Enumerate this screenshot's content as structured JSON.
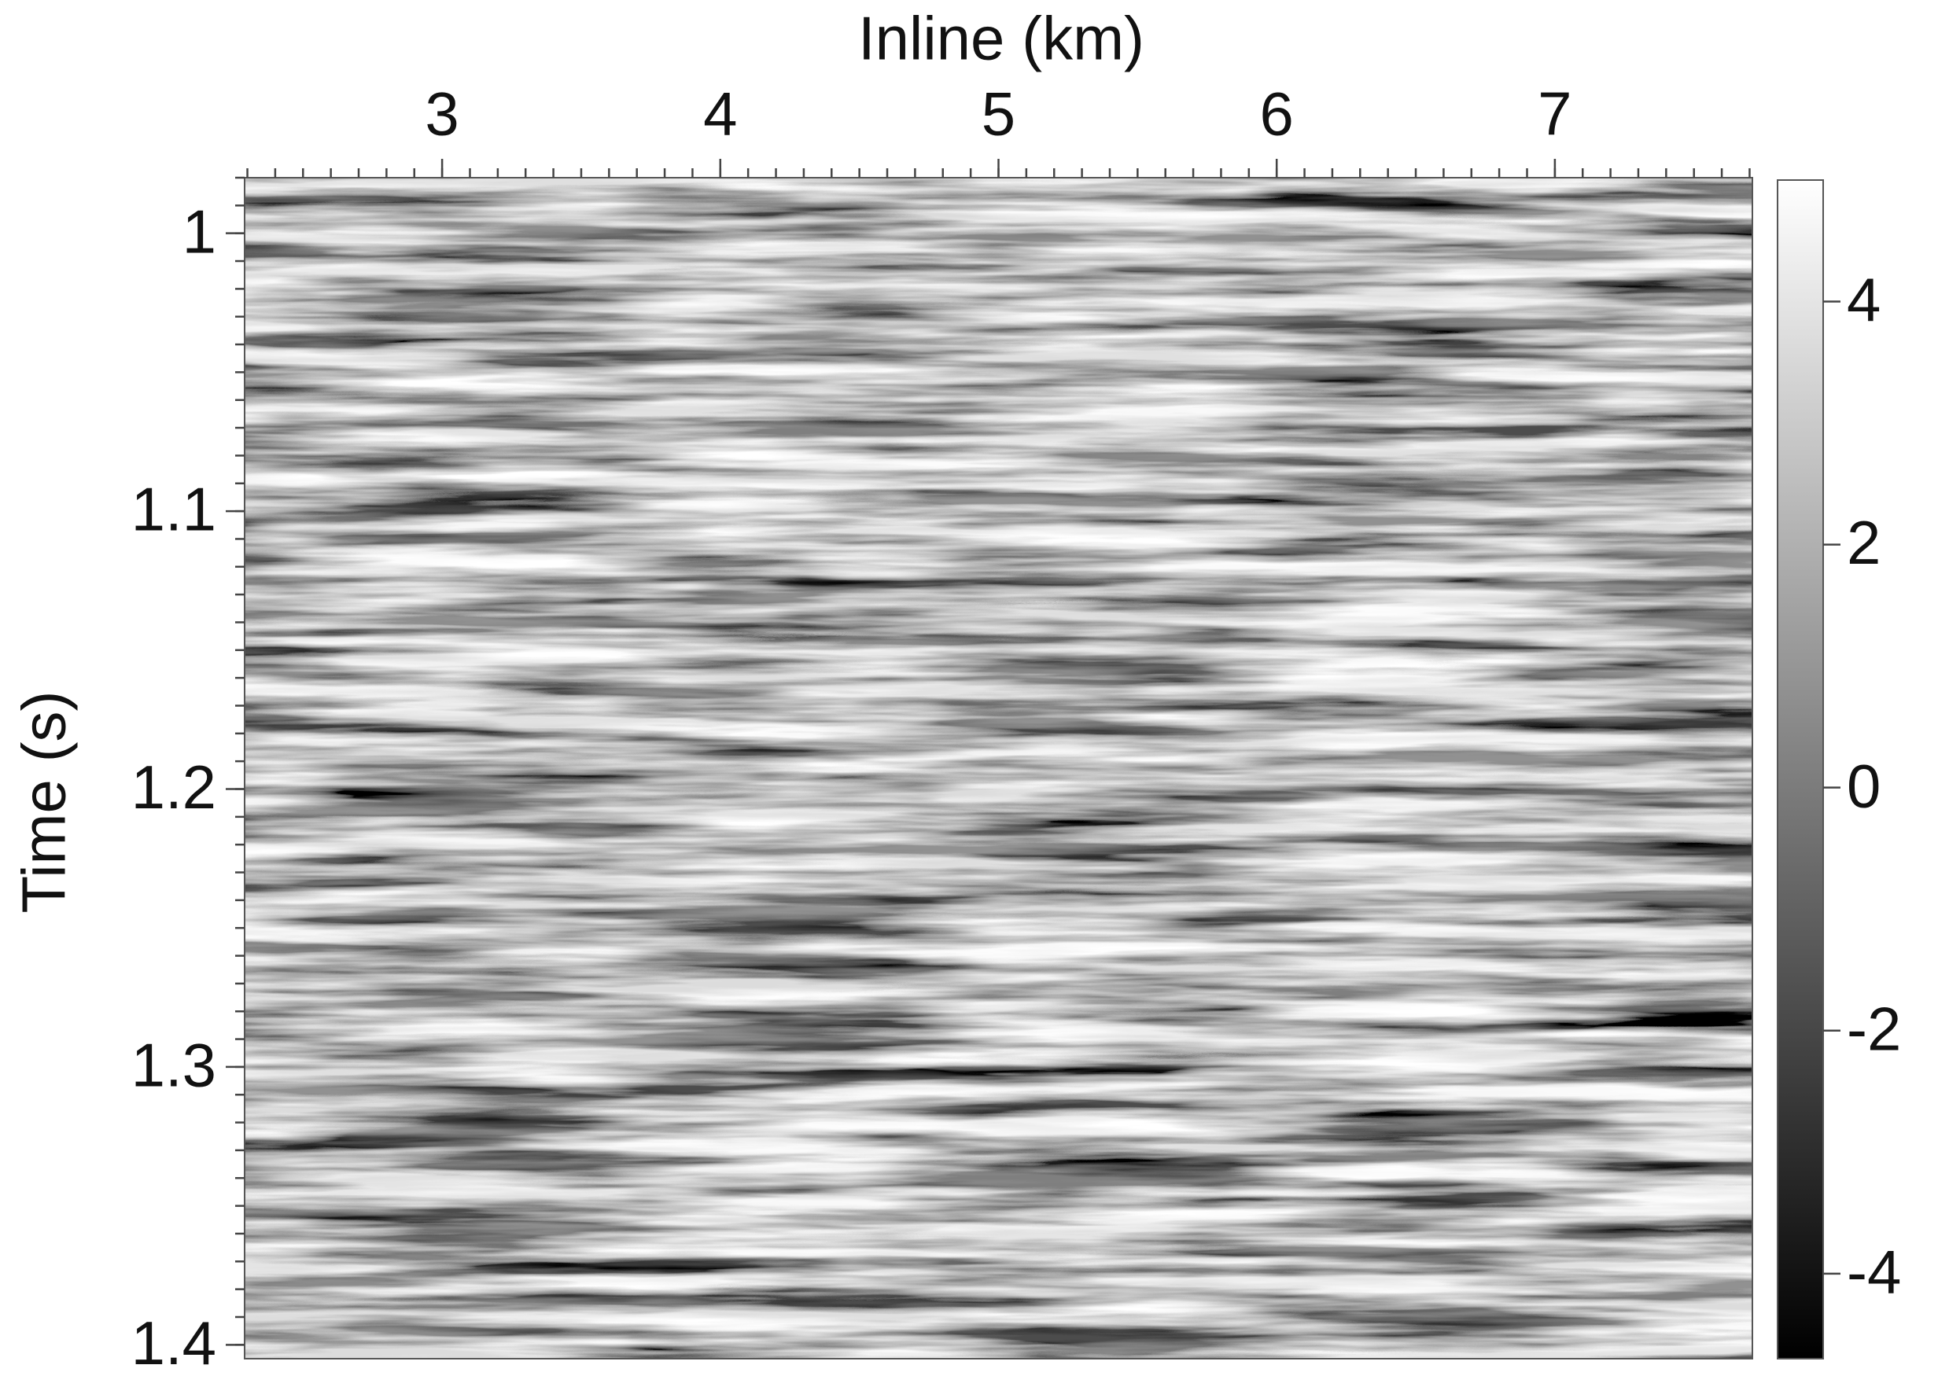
{
  "chart_data": {
    "type": "image",
    "x_label": "Inline (km)",
    "y_label": "Time (s)",
    "xlim": [
      2.29,
      7.71
    ],
    "xticks": [
      3,
      4,
      5,
      6,
      7
    ],
    "ylim": [
      0.98,
      1.405
    ],
    "yticks": [
      1,
      1.1,
      1.2,
      1.3,
      1.4
    ],
    "y_inverted": true,
    "colorbar": {
      "lim": [
        -4.7,
        5
      ],
      "ticks": [
        4,
        2,
        0,
        -2,
        -4
      ],
      "colormap": [
        "#000000",
        "#ffffff"
      ]
    }
  }
}
